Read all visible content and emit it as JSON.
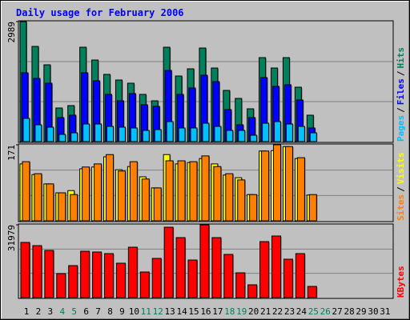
{
  "chart_data": [
    {
      "type": "bar",
      "title": "Daily usage for February 2006",
      "categories": [
        "1",
        "2",
        "3",
        "4",
        "5",
        "6",
        "7",
        "8",
        "9",
        "10",
        "11",
        "12",
        "13",
        "14",
        "15",
        "16",
        "17",
        "18",
        "19",
        "20",
        "21",
        "22",
        "23",
        "24",
        "25",
        "26",
        "27",
        "28",
        "29",
        "30",
        "31"
      ],
      "category_colors": [
        "#000000",
        "#000000",
        "#000000",
        "#00805c",
        "#00805c",
        "#000000",
        "#000000",
        "#000000",
        "#000000",
        "#000000",
        "#00805c",
        "#00805c",
        "#000000",
        "#000000",
        "#000000",
        "#000000",
        "#000000",
        "#00805c",
        "#00805c",
        "#000000",
        "#000000",
        "#000000",
        "#000000",
        "#000000",
        "#00805c",
        "#00805c",
        "#000000",
        "#000000",
        "#000000",
        "#000000",
        "#000000"
      ],
      "legend_separator": "/",
      "ylim": [
        0,
        2989
      ],
      "yticks": [
        2989
      ],
      "series": [
        {
          "name": "Hits",
          "color": "#00805c",
          "values": [
            2989,
            2371,
            1913,
            837,
            897,
            2351,
            2032,
            1674,
            1534,
            1455,
            1176,
            1016,
            2351,
            1634,
            1813,
            2331,
            1833,
            1275,
            1076,
            817,
            2092,
            1833,
            2092,
            1355,
            658,
            null,
            null,
            null,
            null,
            null,
            null
          ]
        },
        {
          "name": "Files",
          "color": "#0000ff",
          "values": [
            1714,
            1574,
            1455,
            598,
            658,
            1714,
            1514,
            1176,
            1016,
            1196,
            917,
            877,
            1773,
            1176,
            1335,
            1654,
            1494,
            797,
            418,
            598,
            1594,
            1375,
            1415,
            1036,
            339,
            null,
            null,
            null,
            null,
            null,
            null
          ]
        },
        {
          "name": "Pages",
          "color": "#00c0ff",
          "values": [
            578,
            418,
            359,
            179,
            219,
            438,
            438,
            379,
            359,
            339,
            279,
            299,
            498,
            339,
            339,
            458,
            379,
            279,
            279,
            159,
            458,
            498,
            438,
            379,
            219,
            null,
            null,
            null,
            null,
            null,
            null
          ]
        }
      ]
    },
    {
      "type": "bar",
      "ylim": [
        0,
        171
      ],
      "yticks": [
        171
      ],
      "series": [
        {
          "name": "Visits",
          "color": "#ffff00",
          "values": [
            128,
            104,
            83,
            63,
            68,
            117,
            121,
            144,
            115,
            122,
            99,
            74,
            149,
            128,
            131,
            140,
            128,
            103,
            97,
            59,
            157,
            158,
            167,
            140,
            58,
            null,
            null,
            null,
            null,
            null,
            null
          ]
        },
        {
          "name": "Sites",
          "color": "#ff8000",
          "values": [
            133,
            106,
            83,
            63,
            59,
            121,
            128,
            149,
            112,
            133,
            94,
            74,
            135,
            135,
            133,
            146,
            122,
            106,
            92,
            59,
            157,
            171,
            167,
            142,
            59,
            null,
            null,
            null,
            null,
            null,
            null
          ]
        }
      ]
    },
    {
      "type": "bar",
      "ylim": [
        0,
        31979
      ],
      "yticks": [
        31979
      ],
      "series": [
        {
          "name": "KBytes",
          "color": "#ff0000",
          "values": [
            24248,
            22842,
            20734,
            10542,
            14057,
            20382,
            20031,
            19328,
            15111,
            22139,
            11245,
            17219,
            30925,
            26356,
            16517,
            31979,
            26356,
            18976,
            10894,
            5623,
            24599,
            27059,
            16868,
            19328,
            4920,
            null,
            null,
            null,
            null,
            null,
            null
          ]
        }
      ]
    }
  ]
}
